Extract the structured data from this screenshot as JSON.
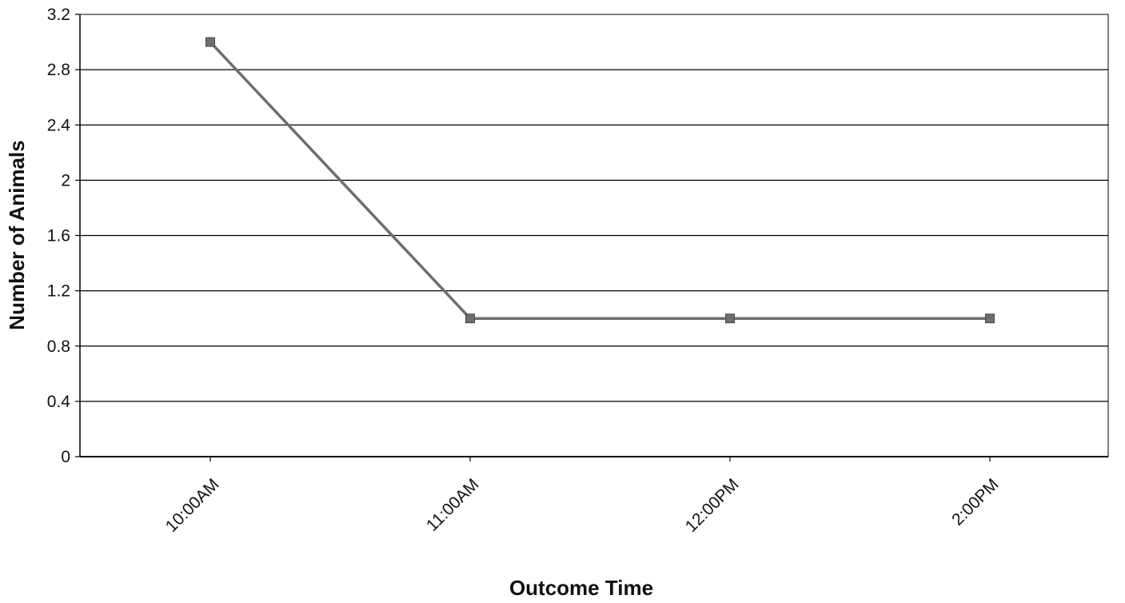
{
  "chart_data": {
    "type": "line",
    "title": "",
    "xlabel": "Outcome Time",
    "ylabel": "Number of Animals",
    "categories": [
      "10:00AM",
      "11:00AM",
      "12:00PM",
      "2:00PM"
    ],
    "series": [
      {
        "values": [
          3,
          1,
          1,
          1
        ]
      }
    ],
    "ylim": [
      0,
      3.2
    ],
    "yticks": [
      "0",
      "0.4",
      "0.8",
      "1.2",
      "1.6",
      "2",
      "2.4",
      "2.8",
      "3.2"
    ],
    "grid": true,
    "legend": "none",
    "colors": {
      "line": "#6e6e6e",
      "marker": "#6e6e6e",
      "grid": "#000000",
      "axis": "#000000"
    }
  }
}
